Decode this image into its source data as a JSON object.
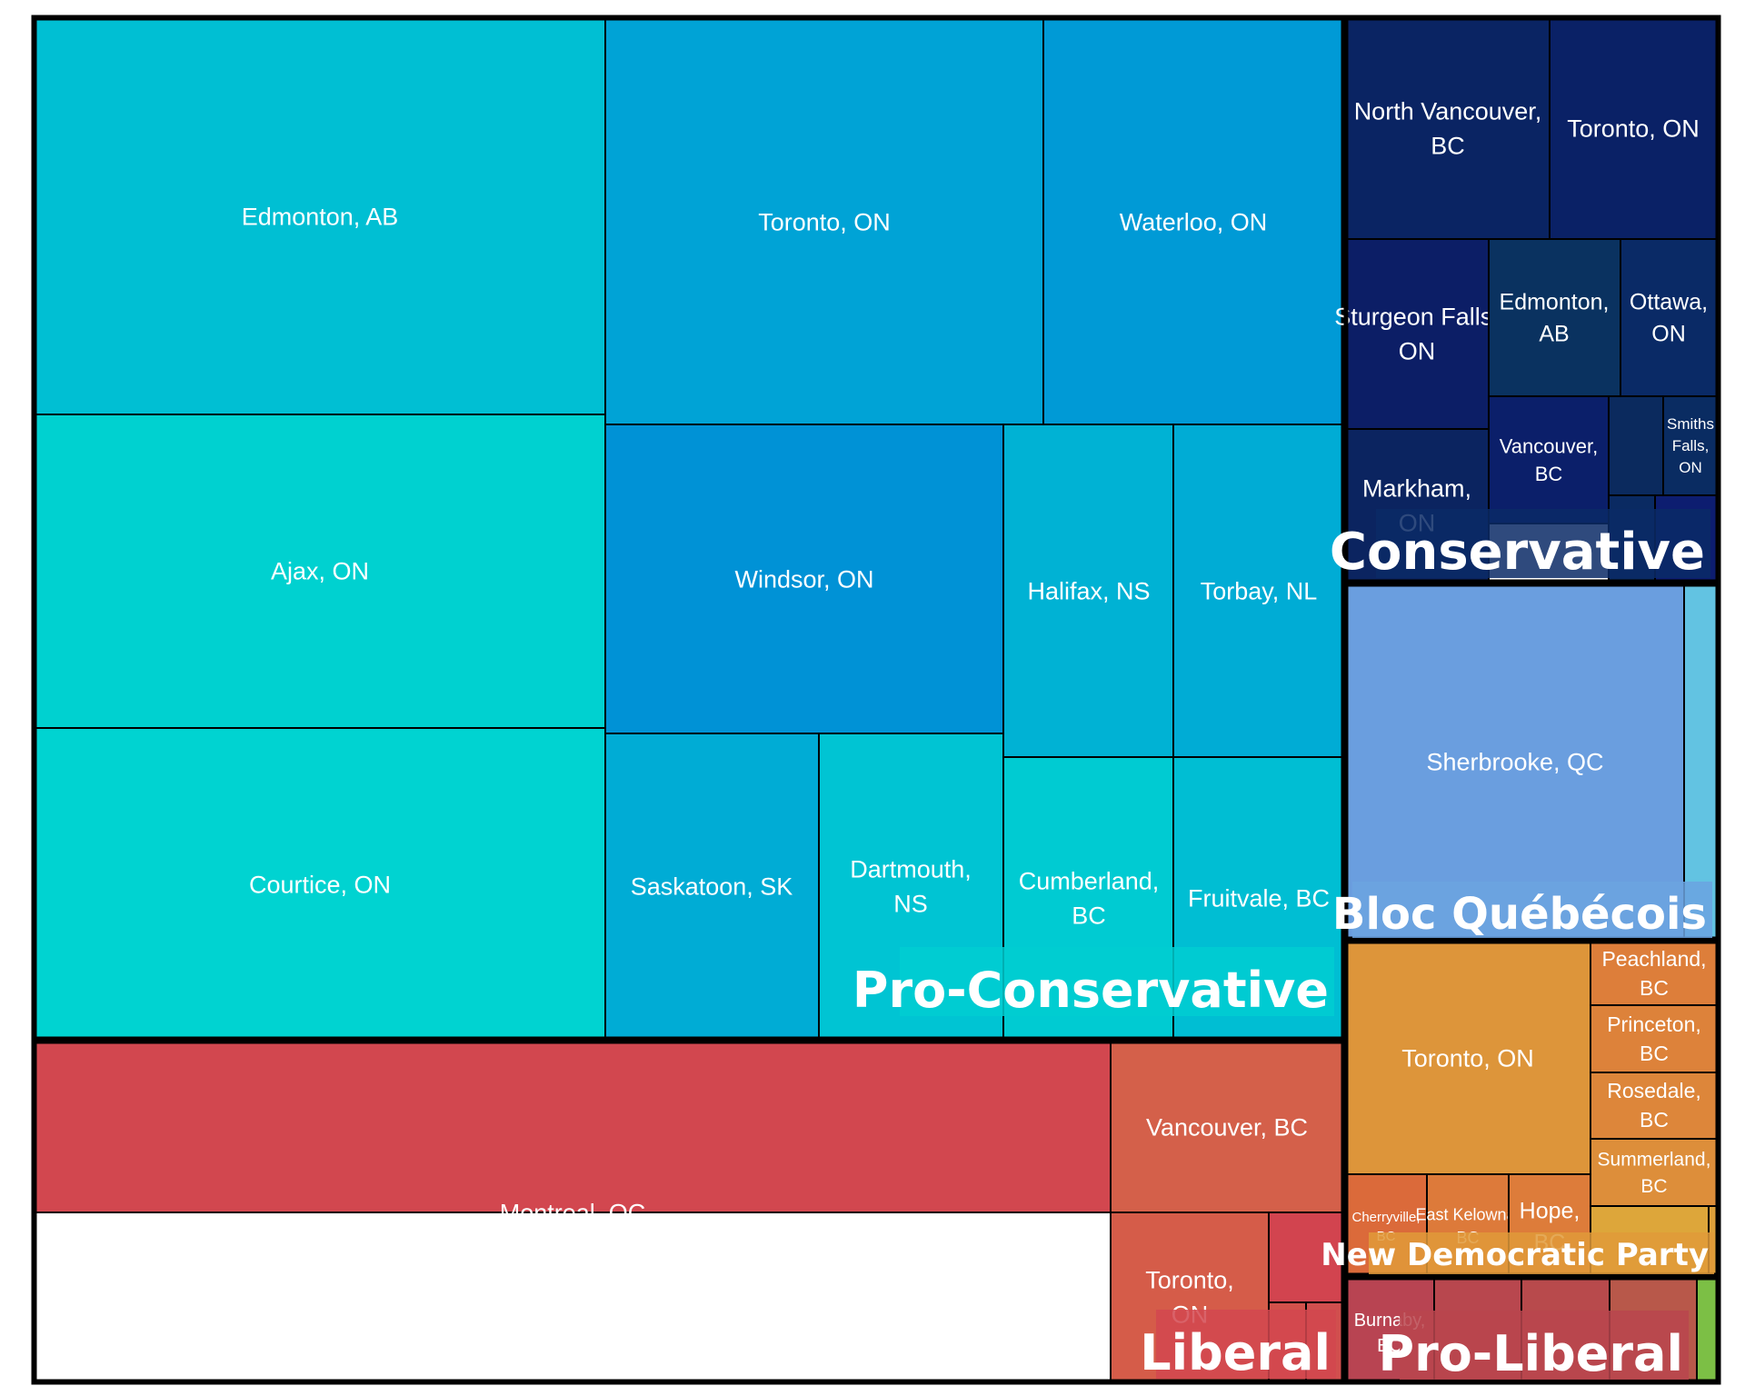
{
  "chart_data": {
    "type": "treemap",
    "groups": [
      {
        "name": "Pro-Conservative",
        "color": "#00CED1",
        "tiles": [
          {
            "label": "Edmonton, AB",
            "color": "#00BFD3"
          },
          {
            "label": "Ajax, ON",
            "color": "#00D1D0"
          },
          {
            "label": "Courtice, ON",
            "color": "#00D3D1"
          },
          {
            "label": "Toronto, ON",
            "color": "#00A3D6"
          },
          {
            "label": "Waterloo, ON",
            "color": "#009AD6"
          },
          {
            "label": "Windsor, ON",
            "color": "#0092D6"
          },
          {
            "label": "Halifax, NS",
            "color": "#00B2D4"
          },
          {
            "label": "Torbay, NL",
            "color": "#00ACD5"
          },
          {
            "label": "Saskatoon, SK",
            "color": "#00ACD5"
          },
          {
            "label": "Dartmouth, NS",
            "color": "#00C4D3"
          },
          {
            "label": "Cumberland, BC",
            "color": "#00CBD2"
          },
          {
            "label": "Fruitvale, BC",
            "color": "#00BED3"
          }
        ]
      },
      {
        "name": "Conservative",
        "color": "#0A2A66",
        "tiles": [
          {
            "label": "North Vancouver, BC",
            "color": "#0A2463"
          },
          {
            "label": "Toronto, ON",
            "color": "#0A2166"
          },
          {
            "label": "Sturgeon Falls, ON",
            "color": "#0C1E66"
          },
          {
            "label": "Edmonton, AB",
            "color": "#0A3260"
          },
          {
            "label": "Ottawa, ON",
            "color": "#0A2A66"
          },
          {
            "label": "Markham, ON",
            "color": "#0B2460"
          },
          {
            "label": "Vancouver, BC",
            "color": "#0B1F6A"
          },
          {
            "label": "",
            "color": "#0B2A5E"
          },
          {
            "label": "Smiths Falls, ON",
            "color": "#0A2C62"
          },
          {
            "label": "",
            "color": "#0A2A62"
          },
          {
            "label": "",
            "color": "#0D1D70"
          }
        ]
      },
      {
        "name": "Bloc Québécois",
        "color": "#6BA3E0",
        "tiles": [
          {
            "label": "Sherbrooke, QC",
            "color": "#6A9EDF"
          },
          {
            "label": "",
            "color": "#62C3E2"
          }
        ]
      },
      {
        "name": "Liberal",
        "color": "#D2474F",
        "tiles": [
          {
            "label": "Montreal, QC",
            "color": "#D2474F"
          },
          {
            "label": "Vancouver, BC",
            "color": "#D4604A"
          },
          {
            "label": "Toronto, ON",
            "color": "#D55C49"
          },
          {
            "label": "",
            "color": "#D2444F"
          },
          {
            "label": "",
            "color": "#D3514B"
          },
          {
            "label": "",
            "color": "#D14F4E"
          }
        ]
      },
      {
        "name": "New Democratic Party",
        "color": "#E09A3A",
        "tiles": [
          {
            "label": "Toronto, ON",
            "color": "#DD953A"
          },
          {
            "label": "Peachland, BC",
            "color": "#DD7E3A"
          },
          {
            "label": "Princeton, BC",
            "color": "#DD823A"
          },
          {
            "label": "Rosedale, BC",
            "color": "#DD863A"
          },
          {
            "label": "Summerland, BC",
            "color": "#DD8E3A"
          },
          {
            "label": "Cherryville, BC",
            "color": "#DB6A3A"
          },
          {
            "label": "East Kelowna, BC",
            "color": "#DD7A3A"
          },
          {
            "label": "Hope, BC",
            "color": "#DD7C3A"
          },
          {
            "label": "",
            "color": "#DDA63A"
          },
          {
            "label": "",
            "color": "#DDA03A"
          }
        ]
      },
      {
        "name": "Pro-Liberal",
        "color": "#B8454E",
        "tiles": [
          {
            "label": "Burnaby, BC",
            "color": "#B84452"
          },
          {
            "label": "",
            "color": "#B8474E"
          },
          {
            "label": "",
            "color": "#B84A4C"
          },
          {
            "label": "",
            "color": "#B8584A"
          },
          {
            "label": "",
            "color": "#7CBF45"
          }
        ]
      }
    ]
  }
}
